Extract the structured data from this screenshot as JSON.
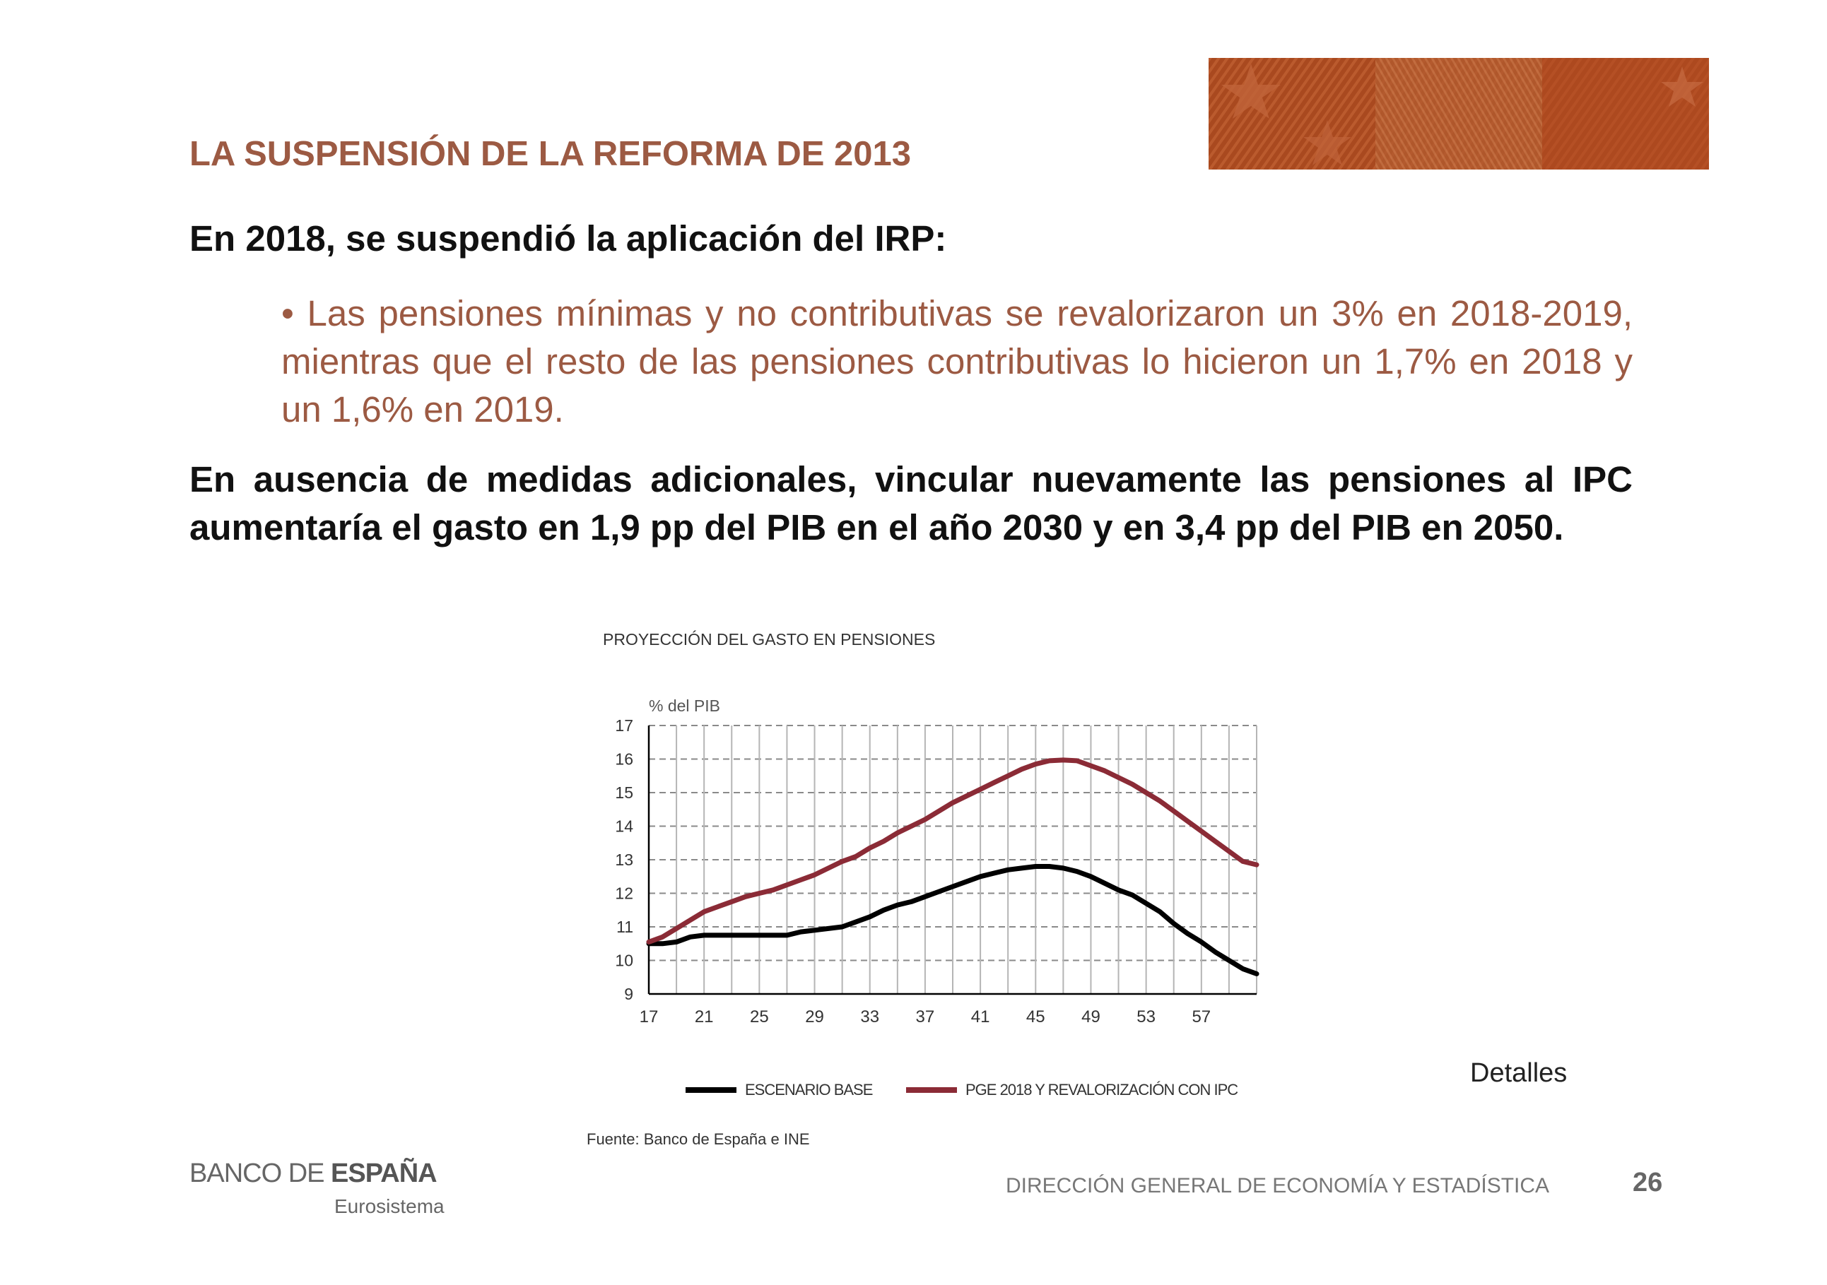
{
  "slide": {
    "title": "LA SUSPENSIÓN DE LA REFORMA DE 2013",
    "lead": "En 2018, se suspendió la aplicación del IRP:",
    "bullet": "• Las pensiones mínimas y no contributivas se revalorizaron un 3% en 2018-2019, mientras que el resto de las pensiones contributivas lo hicieron un 1,7% en 2018 y un 1,6% en 2019.",
    "conclusion": "En ausencia de medidas adicionales, vincular nuevamente las pensiones al IPC aumentaría el gasto en 1,9 pp del PIB en el año 2030 y en 3,4 pp del PIB en 2050.",
    "details_link": "Detalles",
    "source": "Fuente: Banco de España e INE",
    "footer": "DIRECCIÓN GENERAL DE ECONOMÍA Y ESTADÍSTICA",
    "page_number": "26",
    "logo": {
      "part1": "BANCO DE ",
      "part2": "ESPAÑA",
      "sub": "Eurosistema"
    },
    "colors": {
      "accent": "#9c5a43",
      "series_base": "#000000",
      "series_ipc": "#8b2b36",
      "banner": "#a34a22"
    }
  },
  "chart_data": {
    "type": "line",
    "title": "PROYECCIÓN DEL GASTO EN PENSIONES",
    "ylabel": "% del PIB",
    "xlabel": "",
    "x_ticks": [
      "17",
      "21",
      "25",
      "29",
      "33",
      "37",
      "41",
      "45",
      "49",
      "53",
      "57"
    ],
    "y_ticks": [
      "17",
      "16",
      "15",
      "14",
      "13",
      "12",
      "11",
      "10",
      "9"
    ],
    "xlim": [
      17,
      61
    ],
    "ylim": [
      9,
      17
    ],
    "grid": true,
    "legend_position": "bottom",
    "x": [
      17,
      18,
      19,
      20,
      21,
      22,
      23,
      24,
      25,
      26,
      27,
      28,
      29,
      30,
      31,
      32,
      33,
      34,
      35,
      36,
      37,
      38,
      39,
      40,
      41,
      42,
      43,
      44,
      45,
      46,
      47,
      48,
      49,
      50,
      51,
      52,
      53,
      54,
      55,
      56,
      57,
      58,
      59,
      60,
      61
    ],
    "series": [
      {
        "name": "ESCENARIO BASE",
        "color": "#000000",
        "values": [
          10.5,
          10.5,
          10.55,
          10.7,
          10.75,
          10.75,
          10.75,
          10.75,
          10.75,
          10.75,
          10.75,
          10.85,
          10.9,
          10.95,
          11.0,
          11.15,
          11.3,
          11.5,
          11.65,
          11.75,
          11.9,
          12.05,
          12.2,
          12.35,
          12.5,
          12.6,
          12.7,
          12.75,
          12.8,
          12.8,
          12.75,
          12.65,
          12.5,
          12.3,
          12.1,
          11.95,
          11.7,
          11.45,
          11.1,
          10.8,
          10.55,
          10.25,
          10.0,
          9.75,
          9.6
        ]
      },
      {
        "name": "PGE 2018 Y REVALORIZACIÓN CON IPC",
        "color": "#8b2b36",
        "values": [
          10.55,
          10.7,
          10.95,
          11.2,
          11.45,
          11.6,
          11.75,
          11.9,
          12.0,
          12.1,
          12.25,
          12.4,
          12.55,
          12.75,
          12.95,
          13.1,
          13.35,
          13.55,
          13.8,
          14.0,
          14.2,
          14.45,
          14.7,
          14.9,
          15.1,
          15.3,
          15.5,
          15.7,
          15.85,
          15.95,
          15.97,
          15.95,
          15.8,
          15.65,
          15.45,
          15.25,
          15.0,
          14.75,
          14.45,
          14.15,
          13.85,
          13.55,
          13.25,
          12.95,
          12.85
        ]
      }
    ]
  }
}
